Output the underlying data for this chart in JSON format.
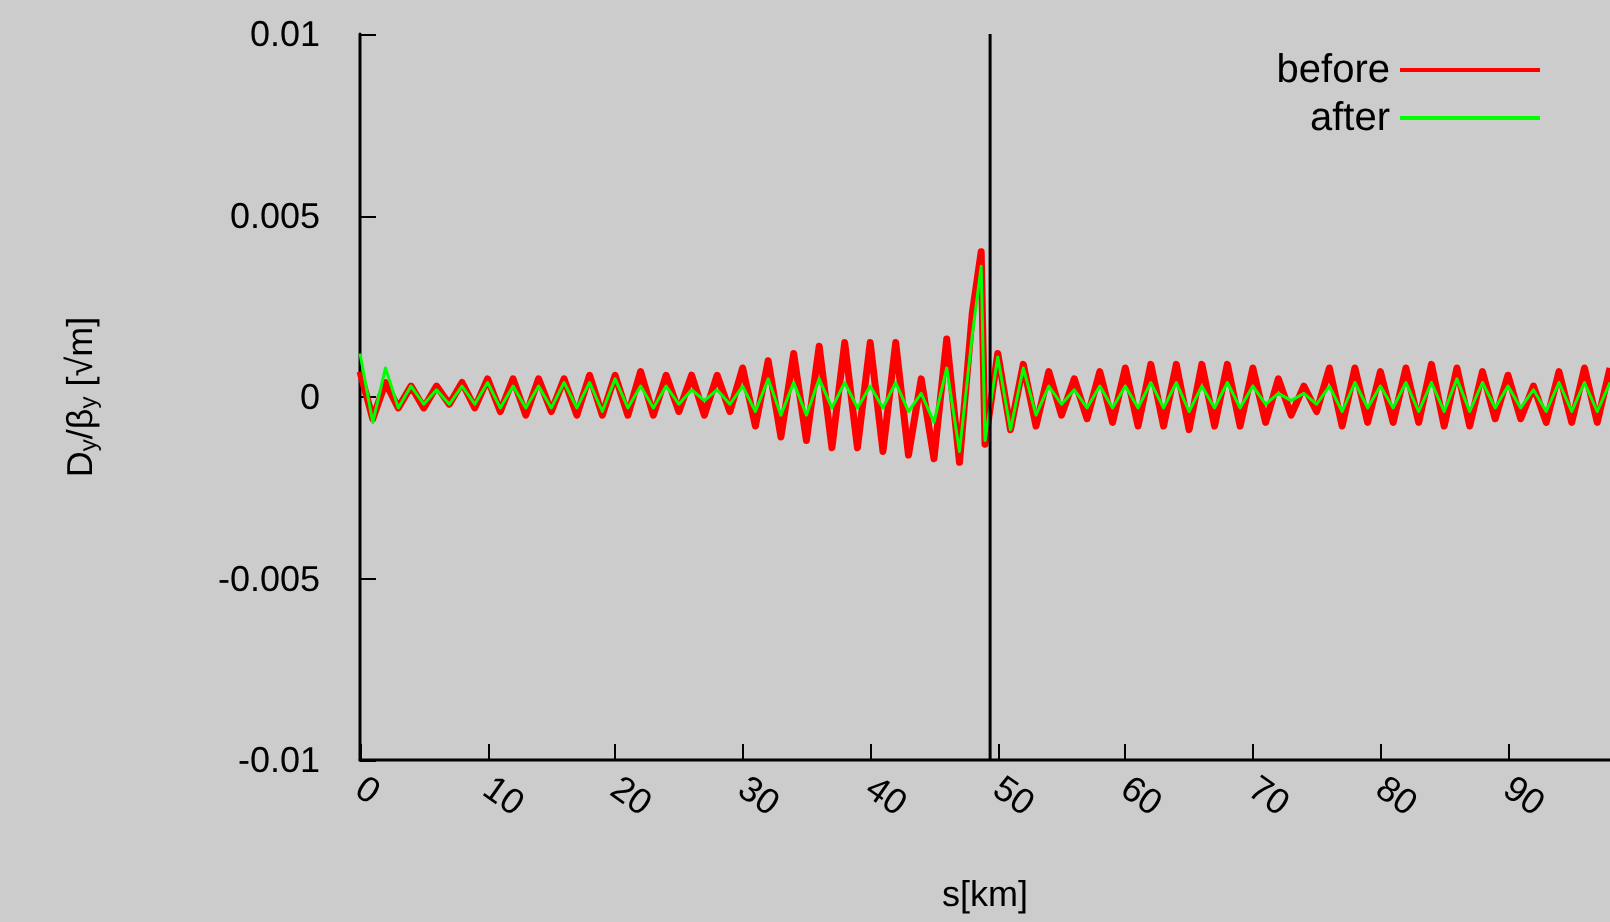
{
  "chart_data": {
    "type": "line",
    "xlabel": "s[km]",
    "ylabel": "D$_{y}$/β$_{y}$ [√m]",
    "x": [
      0,
      1,
      2,
      3,
      4,
      5,
      6,
      7,
      8,
      9,
      10,
      11,
      12,
      13,
      14,
      15,
      16,
      17,
      18,
      19,
      20,
      21,
      22,
      23,
      24,
      25,
      26,
      27,
      28,
      29,
      30,
      31,
      32,
      33,
      34,
      35,
      36,
      37,
      38,
      39,
      40,
      41,
      42,
      43,
      44,
      45,
      46,
      47,
      48,
      48.7,
      49,
      50,
      51,
      52,
      53,
      54,
      55,
      56,
      57,
      58,
      59,
      60,
      61,
      62,
      63,
      64,
      65,
      66,
      67,
      68,
      69,
      70,
      71,
      72,
      73,
      74,
      75,
      76,
      77,
      78,
      79,
      80,
      81,
      82,
      83,
      84,
      85,
      86,
      87,
      88,
      89,
      90,
      91,
      92,
      93,
      94,
      95,
      96,
      97,
      98
    ],
    "series": [
      {
        "name": "before",
        "color": "#ff0000",
        "values": [
          0.0007,
          -0.0006,
          0.0004,
          -0.0003,
          0.0003,
          -0.0003,
          0.0003,
          -0.0002,
          0.0004,
          -0.0003,
          0.0005,
          -0.0004,
          0.0005,
          -0.0005,
          0.0005,
          -0.0004,
          0.0005,
          -0.0005,
          0.0006,
          -0.0005,
          0.0006,
          -0.0005,
          0.0007,
          -0.0005,
          0.0006,
          -0.0004,
          0.0006,
          -0.0005,
          0.0006,
          -0.0004,
          0.0008,
          -0.0008,
          0.001,
          -0.0011,
          0.0012,
          -0.0012,
          0.0014,
          -0.0014,
          0.0015,
          -0.0014,
          0.0015,
          -0.0015,
          0.0015,
          -0.0016,
          0.0005,
          -0.0017,
          0.0016,
          -0.0018,
          0.0023,
          0.004,
          -0.0013,
          0.0012,
          -0.0009,
          0.0009,
          -0.0008,
          0.0007,
          -0.0005,
          0.0005,
          -0.0006,
          0.0007,
          -0.0007,
          0.0008,
          -0.0008,
          0.0009,
          -0.0008,
          0.0009,
          -0.0009,
          0.0009,
          -0.0008,
          0.0009,
          -0.0008,
          0.0008,
          -0.0007,
          0.0005,
          -0.0005,
          0.0003,
          -0.0004,
          0.0008,
          -0.0008,
          0.0008,
          -0.0007,
          0.0007,
          -0.0007,
          0.0008,
          -0.0007,
          0.0009,
          -0.0008,
          0.0008,
          -0.0008,
          0.0007,
          -0.0006,
          0.0006,
          -0.0006,
          0.0003,
          -0.0007,
          0.0007,
          -0.0007,
          0.0008,
          -0.0007,
          0.0008
        ]
      },
      {
        "name": "after",
        "color": "#00ff00",
        "values": [
          0.0012,
          -0.0007,
          0.0008,
          -0.0003,
          0.0003,
          -0.0002,
          0.0002,
          -0.0002,
          0.0003,
          -0.0002,
          0.0004,
          -0.0003,
          0.0003,
          -0.0003,
          0.0003,
          -0.0003,
          0.0004,
          -0.0003,
          0.0004,
          -0.0004,
          0.0005,
          -0.0003,
          0.0003,
          -0.0003,
          0.0003,
          -0.0002,
          0.0002,
          -0.0001,
          0.0002,
          -0.0002,
          0.0003,
          -0.0004,
          0.0005,
          -0.0005,
          0.0004,
          -0.0005,
          0.0005,
          -0.0003,
          0.0004,
          -0.0003,
          0.0003,
          -0.0003,
          0.0004,
          -0.0004,
          0.0001,
          -0.0007,
          0.0008,
          -0.0015,
          0.0017,
          0.0036,
          -0.0012,
          0.0011,
          -0.0009,
          0.0008,
          -0.0005,
          0.0003,
          -0.0002,
          0.0002,
          -0.0003,
          0.0003,
          -0.0003,
          0.0003,
          -0.0003,
          0.0004,
          -0.0003,
          0.0004,
          -0.0004,
          0.0003,
          -0.0003,
          0.0004,
          -0.0003,
          0.0003,
          -0.0002,
          0.0001,
          -0.0001,
          0.0001,
          -0.0002,
          0.0003,
          -0.0004,
          0.0004,
          -0.0003,
          0.0003,
          -0.0003,
          0.0004,
          -0.0004,
          0.0004,
          -0.0004,
          0.0005,
          -0.0004,
          0.0004,
          -0.0003,
          0.0003,
          -0.0003,
          0.0002,
          -0.0004,
          0.0004,
          -0.0004,
          0.0004,
          -0.0004,
          0.0004
        ]
      }
    ],
    "xlim": [
      0,
      98
    ],
    "xticks": [
      0,
      10,
      20,
      30,
      40,
      50,
      60,
      70,
      80,
      90
    ],
    "ylim": [
      -0.01,
      0.01
    ],
    "yticks": [
      -0.01,
      -0.005,
      0,
      0.005,
      0.01
    ],
    "ref_lines": [
      {
        "axis": "x",
        "value": 49.4,
        "color": "#000000"
      }
    ],
    "grid": false,
    "legend": "top right",
    "marker": "none",
    "line_style": "solid"
  }
}
